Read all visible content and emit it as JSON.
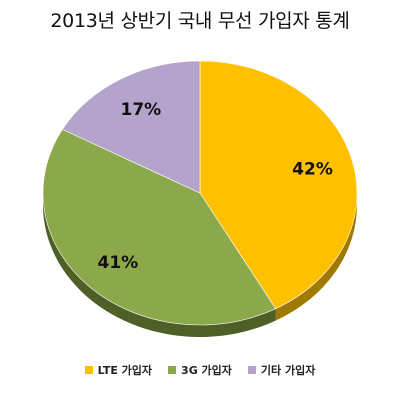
{
  "chart_data": {
    "type": "pie",
    "title": "2013년 상반기 국내 무선 가입자 통계",
    "slices": [
      {
        "label": "LTE 가입자",
        "value": 42,
        "display": "42%",
        "color": "#FFC000",
        "side_color": "#A07A00"
      },
      {
        "label": "3G 가입자",
        "value": 41,
        "display": "41%",
        "color": "#8BA94B",
        "side_color": "#4E5F27"
      },
      {
        "label": "기타 가입자",
        "value": 17,
        "display": "17%",
        "color": "#B4A4CC",
        "side_color": "#6E6380"
      }
    ],
    "legend_position": "bottom"
  }
}
